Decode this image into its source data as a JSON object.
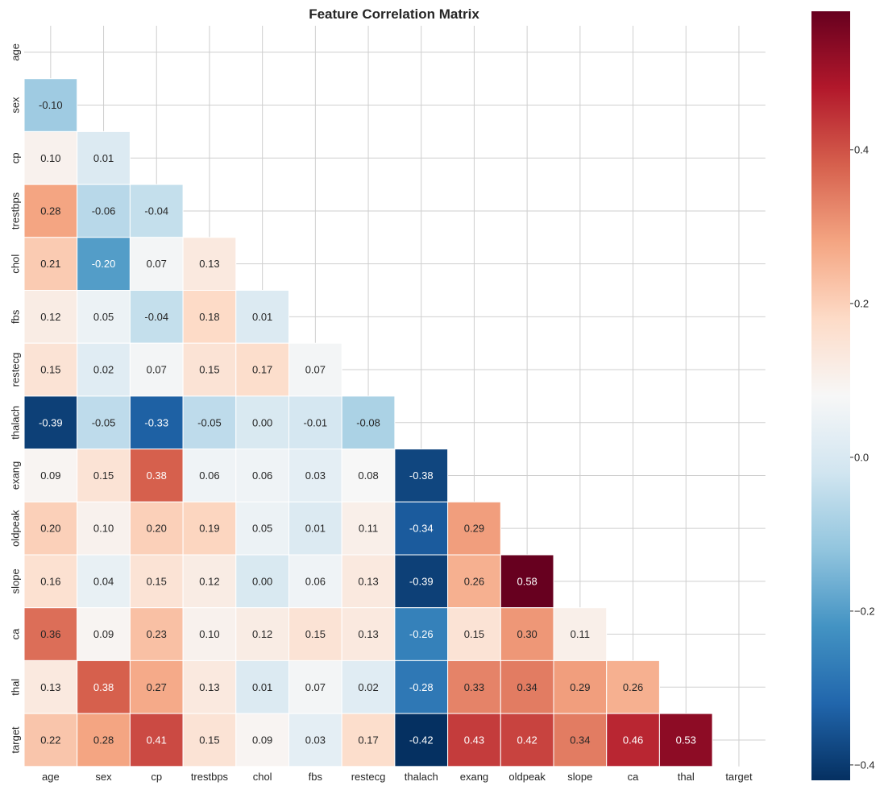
{
  "chart_data": {
    "type": "heatmap",
    "title": "Feature Correlation Matrix",
    "variables": [
      "age",
      "sex",
      "cp",
      "trestbps",
      "chol",
      "fbs",
      "restecg",
      "thalach",
      "exang",
      "oldpeak",
      "slope",
      "ca",
      "thal",
      "target"
    ],
    "mask": "upper-triangle-including-diagonal",
    "matrix": [
      [
        null,
        null,
        null,
        null,
        null,
        null,
        null,
        null,
        null,
        null,
        null,
        null,
        null,
        null
      ],
      [
        -0.1,
        null,
        null,
        null,
        null,
        null,
        null,
        null,
        null,
        null,
        null,
        null,
        null,
        null
      ],
      [
        0.1,
        0.01,
        null,
        null,
        null,
        null,
        null,
        null,
        null,
        null,
        null,
        null,
        null,
        null
      ],
      [
        0.28,
        -0.06,
        -0.04,
        null,
        null,
        null,
        null,
        null,
        null,
        null,
        null,
        null,
        null,
        null
      ],
      [
        0.21,
        -0.2,
        0.07,
        0.13,
        null,
        null,
        null,
        null,
        null,
        null,
        null,
        null,
        null,
        null
      ],
      [
        0.12,
        0.05,
        -0.04,
        0.18,
        0.01,
        null,
        null,
        null,
        null,
        null,
        null,
        null,
        null,
        null
      ],
      [
        0.15,
        0.02,
        0.07,
        0.15,
        0.17,
        0.07,
        null,
        null,
        null,
        null,
        null,
        null,
        null,
        null
      ],
      [
        -0.39,
        -0.05,
        -0.33,
        -0.05,
        -0.0,
        -0.01,
        -0.08,
        null,
        null,
        null,
        null,
        null,
        null,
        null
      ],
      [
        0.09,
        0.15,
        0.38,
        0.06,
        0.06,
        0.03,
        0.08,
        -0.38,
        null,
        null,
        null,
        null,
        null,
        null
      ],
      [
        0.2,
        0.1,
        0.2,
        0.19,
        0.05,
        0.01,
        0.11,
        -0.34,
        0.29,
        null,
        null,
        null,
        null,
        null
      ],
      [
        0.16,
        0.04,
        0.15,
        0.12,
        -0.0,
        0.06,
        0.13,
        -0.39,
        0.26,
        0.58,
        null,
        null,
        null,
        null
      ],
      [
        0.36,
        0.09,
        0.23,
        0.1,
        0.12,
        0.15,
        0.13,
        -0.26,
        0.15,
        0.3,
        0.11,
        null,
        null,
        null
      ],
      [
        0.13,
        0.38,
        0.27,
        0.13,
        0.01,
        0.07,
        0.02,
        -0.28,
        0.33,
        0.34,
        0.29,
        0.26,
        null,
        null
      ],
      [
        0.22,
        0.28,
        0.41,
        0.15,
        0.09,
        0.03,
        0.17,
        -0.42,
        0.43,
        0.42,
        0.34,
        0.46,
        0.53,
        null
      ]
    ],
    "colormap": "RdBu_r",
    "vmin": -0.42,
    "vmax": 0.58,
    "colorbar_ticks": [
      -0.4,
      -0.2,
      0.0,
      0.2,
      0.4
    ],
    "colorbar_tick_labels": [
      "−0.4",
      "−0.2",
      "0.0",
      "0.2",
      "0.4"
    ],
    "grid": true
  }
}
